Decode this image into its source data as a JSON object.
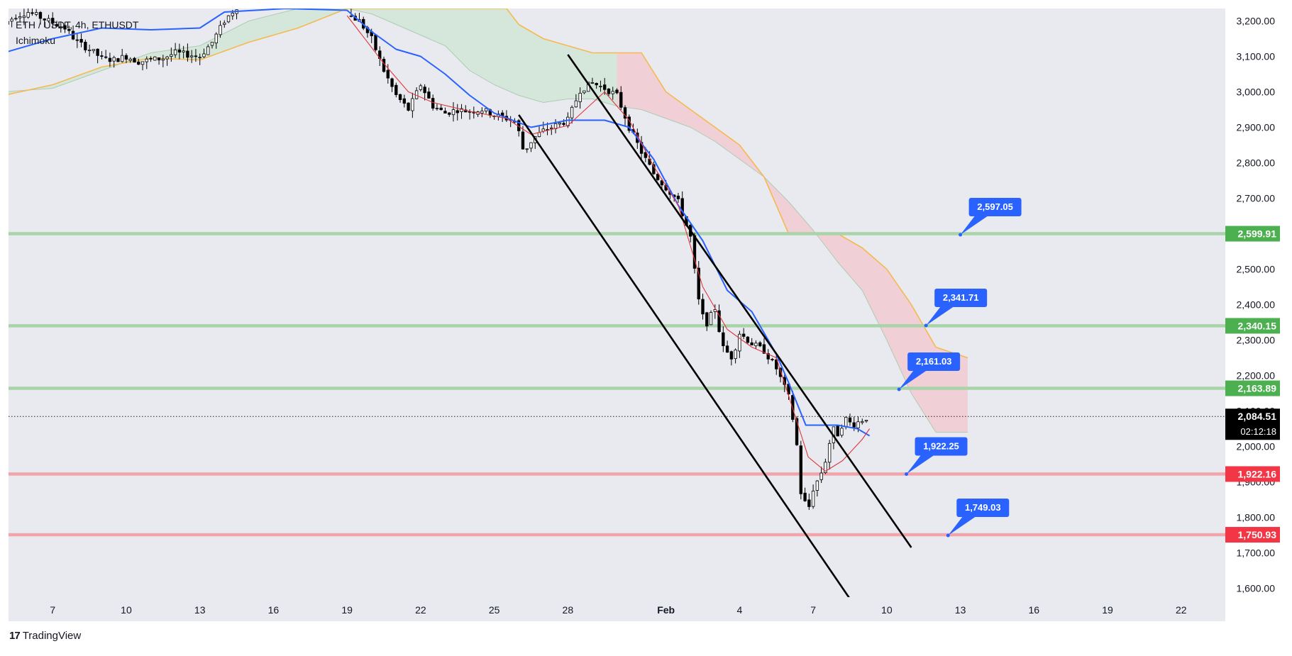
{
  "legend": {
    "symbol_line": "ETH / USDT, 4h, ETHUSDT",
    "indicator": "Ichimoku"
  },
  "branding": {
    "logo": "17",
    "name": "TradingView"
  },
  "colors": {
    "background": "#e8eaef",
    "support_line": "#f1a5ab",
    "resistance_line": "#a9d3a9",
    "callout": "#2962ff",
    "price_tag_green": "#4caf50",
    "price_tag_red": "#f23645",
    "current_tag": "#000000",
    "candle_up": "#ffffff",
    "candle_down": "#000000",
    "tenkan": "#e0363d",
    "kijun": "#2962ff",
    "span_b": "#f5b94f",
    "cloud_bear": "#f1c9cf",
    "cloud_bull": "#cfe6d6",
    "channel": "#000000"
  },
  "chart_data": {
    "type": "candlestick",
    "title": "ETH / USDT, 4h, ETHUSDT",
    "indicator": "Ichimoku",
    "y_axis": {
      "ticks": [
        "3,200.00",
        "3,100.00",
        "3,000.00",
        "2,900.00",
        "2,800.00",
        "2,700.00",
        "2,600.00",
        "2,500.00",
        "2,400.00",
        "2,300.00",
        "2,200.00",
        "2,100.00",
        "2,000.00",
        "1,900.00",
        "1,800.00",
        "1,700.00",
        "1,600.00"
      ],
      "tick_values": [
        3200,
        3100,
        3000,
        2900,
        2800,
        2700,
        2600,
        2500,
        2400,
        2300,
        2200,
        2100,
        2000,
        1900,
        1800,
        1700,
        1600
      ],
      "range": [
        1575,
        3235
      ]
    },
    "x_axis": {
      "ticks": [
        "7",
        "10",
        "13",
        "16",
        "19",
        "22",
        "25",
        "28",
        "Feb",
        "4",
        "7",
        "10",
        "13",
        "16",
        "19",
        "22"
      ],
      "tick_days": [
        7,
        10,
        13,
        16,
        19,
        22,
        25,
        28,
        32,
        35,
        38,
        41,
        44,
        47,
        50,
        53
      ],
      "range_days": [
        5.2,
        54.8
      ],
      "unit": "days since Jan 1 (Feb 1 = day 32)"
    },
    "horizontal_levels": [
      {
        "value": 2599.91,
        "label": "2,599.91",
        "kind": "resistance"
      },
      {
        "value": 2340.15,
        "label": "2,340.15",
        "kind": "resistance"
      },
      {
        "value": 2163.89,
        "label": "2,163.89",
        "kind": "resistance"
      },
      {
        "value": 1922.16,
        "label": "1,922.16",
        "kind": "support"
      },
      {
        "value": 1750.93,
        "label": "1,750.93",
        "kind": "support"
      }
    ],
    "current_price": {
      "value": 2084.51,
      "label": "2,084.51",
      "countdown": "02:12:18"
    },
    "callouts": [
      {
        "label": "2,597.05",
        "day": 44.0,
        "value": 2597
      },
      {
        "label": "2,341.71",
        "day": 42.6,
        "value": 2341
      },
      {
        "label": "2,161.03",
        "day": 41.5,
        "value": 2161
      },
      {
        "label": "1,922.25",
        "day": 41.8,
        "value": 1922
      },
      {
        "label": "1,749.03",
        "day": 43.5,
        "value": 1749
      }
    ],
    "channel_lines": [
      {
        "from": {
          "day": 26.0,
          "value": 2935
        },
        "to": {
          "day": 39.5,
          "value": 1570
        }
      },
      {
        "from": {
          "day": 28.0,
          "value": 3105
        },
        "to": {
          "day": 42.0,
          "value": 1715
        }
      }
    ],
    "price_path": [
      [
        5.0,
        3190
      ],
      [
        5.5,
        3215
      ],
      [
        6.0,
        3225
      ],
      [
        6.5,
        3210
      ],
      [
        7.0,
        3195
      ],
      [
        7.5,
        3180
      ],
      [
        8.0,
        3140
      ],
      [
        8.5,
        3120
      ],
      [
        9.0,
        3095
      ],
      [
        9.5,
        3090
      ],
      [
        10.0,
        3100
      ],
      [
        10.5,
        3085
      ],
      [
        11.0,
        3090
      ],
      [
        11.5,
        3095
      ],
      [
        12.0,
        3110
      ],
      [
        12.5,
        3105
      ],
      [
        13.0,
        3100
      ],
      [
        13.5,
        3140
      ],
      [
        14.0,
        3200
      ],
      [
        14.5,
        3240
      ],
      [
        19.0,
        3220
      ],
      [
        19.5,
        3200
      ],
      [
        20.0,
        3150
      ],
      [
        20.5,
        3060
      ],
      [
        21.0,
        2990
      ],
      [
        21.5,
        2950
      ],
      [
        22.0,
        3020
      ],
      [
        22.5,
        2960
      ],
      [
        23.0,
        2940
      ],
      [
        23.5,
        2950
      ],
      [
        24.0,
        2945
      ],
      [
        24.5,
        2950
      ],
      [
        25.0,
        2935
      ],
      [
        25.5,
        2925
      ],
      [
        25.9,
        2915
      ],
      [
        26.2,
        2830
      ],
      [
        26.6,
        2870
      ],
      [
        27.0,
        2890
      ],
      [
        27.5,
        2905
      ],
      [
        28.0,
        2920
      ],
      [
        28.5,
        3005
      ],
      [
        29.0,
        3025
      ],
      [
        29.5,
        3010
      ],
      [
        30.0,
        2990
      ],
      [
        30.5,
        2900
      ],
      [
        31.0,
        2830
      ],
      [
        31.5,
        2770
      ],
      [
        32.0,
        2730
      ],
      [
        32.5,
        2690
      ],
      [
        33.0,
        2590
      ],
      [
        33.3,
        2420
      ],
      [
        33.6,
        2340
      ],
      [
        34.0,
        2390
      ],
      [
        34.3,
        2280
      ],
      [
        34.7,
        2250
      ],
      [
        35.0,
        2320
      ],
      [
        35.5,
        2290
      ],
      [
        36.0,
        2270
      ],
      [
        36.5,
        2220
      ],
      [
        37.0,
        2140
      ],
      [
        37.3,
        2030
      ],
      [
        37.5,
        1870
      ],
      [
        37.8,
        1820
      ],
      [
        38.0,
        1880
      ],
      [
        38.3,
        1920
      ],
      [
        38.5,
        1960
      ],
      [
        38.8,
        2050
      ],
      [
        39.0,
        2035
      ],
      [
        39.3,
        2080
      ],
      [
        39.6,
        2060
      ],
      [
        40.0,
        2075
      ],
      [
        40.3,
        2085
      ]
    ],
    "ichimoku": {
      "tenkan": [
        [
          19.0,
          3215
        ],
        [
          20.5,
          3080
        ],
        [
          21.5,
          3000
        ],
        [
          22.5,
          2970
        ],
        [
          24.0,
          2945
        ],
        [
          25.5,
          2925
        ],
        [
          26.5,
          2880
        ],
        [
          28.0,
          2905
        ],
        [
          29.5,
          3000
        ],
        [
          30.5,
          2920
        ],
        [
          31.5,
          2790
        ],
        [
          32.5,
          2680
        ],
        [
          33.5,
          2450
        ],
        [
          34.5,
          2330
        ],
        [
          35.5,
          2280
        ],
        [
          36.5,
          2250
        ],
        [
          37.2,
          2100
        ],
        [
          37.8,
          1970
        ],
        [
          38.5,
          1930
        ],
        [
          39.2,
          1960
        ],
        [
          40.0,
          2020
        ],
        [
          40.3,
          2050
        ]
      ],
      "kijun": [
        [
          5.0,
          3110
        ],
        [
          7.0,
          3150
        ],
        [
          9.0,
          3180
        ],
        [
          11.0,
          3175
        ],
        [
          13.0,
          3180
        ],
        [
          14.0,
          3225
        ],
        [
          16.5,
          3235
        ],
        [
          19.0,
          3230
        ],
        [
          20.0,
          3170
        ],
        [
          21.0,
          3120
        ],
        [
          22.0,
          3100
        ],
        [
          23.0,
          3050
        ],
        [
          24.0,
          2990
        ],
        [
          25.0,
          2940
        ],
        [
          26.5,
          2900
        ],
        [
          28.0,
          2920
        ],
        [
          29.5,
          2920
        ],
        [
          30.5,
          2900
        ],
        [
          31.5,
          2810
        ],
        [
          32.5,
          2680
        ],
        [
          33.5,
          2580
        ],
        [
          34.5,
          2440
        ],
        [
          35.5,
          2380
        ],
        [
          36.5,
          2260
        ],
        [
          37.0,
          2180
        ],
        [
          37.7,
          2060
        ],
        [
          38.3,
          2060
        ],
        [
          39.0,
          2060
        ],
        [
          39.8,
          2050
        ],
        [
          40.3,
          2030
        ]
      ],
      "span_a": [
        [
          5.0,
          3000
        ],
        [
          7.0,
          3010
        ],
        [
          9.0,
          3060
        ],
        [
          11.0,
          3110
        ],
        [
          13.0,
          3130
        ],
        [
          15.0,
          3200
        ],
        [
          17.0,
          3235
        ],
        [
          19.0,
          3235
        ],
        [
          20.0,
          3220
        ],
        [
          21.0,
          3190
        ],
        [
          22.0,
          3160
        ],
        [
          23.0,
          3130
        ],
        [
          24.0,
          3060
        ],
        [
          25.0,
          3020
        ],
        [
          26.0,
          2990
        ],
        [
          27.0,
          2970
        ],
        [
          28.0,
          2980
        ],
        [
          29.0,
          2980
        ],
        [
          30.0,
          2960
        ],
        [
          31.0,
          2950
        ],
        [
          32.0,
          2925
        ],
        [
          33.0,
          2900
        ],
        [
          34.0,
          2860
        ],
        [
          35.0,
          2810
        ],
        [
          36.0,
          2760
        ],
        [
          37.0,
          2690
        ],
        [
          38.0,
          2610
        ],
        [
          39.0,
          2520
        ],
        [
          40.0,
          2440
        ],
        [
          41.0,
          2300
        ],
        [
          42.0,
          2150
        ],
        [
          43.0,
          2040
        ],
        [
          44.3,
          2040
        ]
      ],
      "span_b": [
        [
          5.0,
          2990
        ],
        [
          7.0,
          3020
        ],
        [
          9.0,
          3070
        ],
        [
          11.0,
          3095
        ],
        [
          13.0,
          3090
        ],
        [
          15.0,
          3140
        ],
        [
          17.0,
          3180
        ],
        [
          19.0,
          3235
        ],
        [
          23.0,
          3235
        ],
        [
          25.5,
          3235
        ],
        [
          26.0,
          3190
        ],
        [
          27.0,
          3150
        ],
        [
          28.0,
          3130
        ],
        [
          29.0,
          3110
        ],
        [
          30.0,
          3110
        ],
        [
          31.0,
          3110
        ],
        [
          32.0,
          3000
        ],
        [
          33.0,
          2950
        ],
        [
          34.0,
          2900
        ],
        [
          35.0,
          2850
        ],
        [
          36.0,
          2760
        ],
        [
          37.0,
          2600
        ],
        [
          38.0,
          2600
        ],
        [
          39.0,
          2600
        ],
        [
          40.0,
          2560
        ],
        [
          41.0,
          2500
        ],
        [
          42.0,
          2400
        ],
        [
          43.0,
          2280
        ],
        [
          44.3,
          2250
        ]
      ]
    }
  }
}
